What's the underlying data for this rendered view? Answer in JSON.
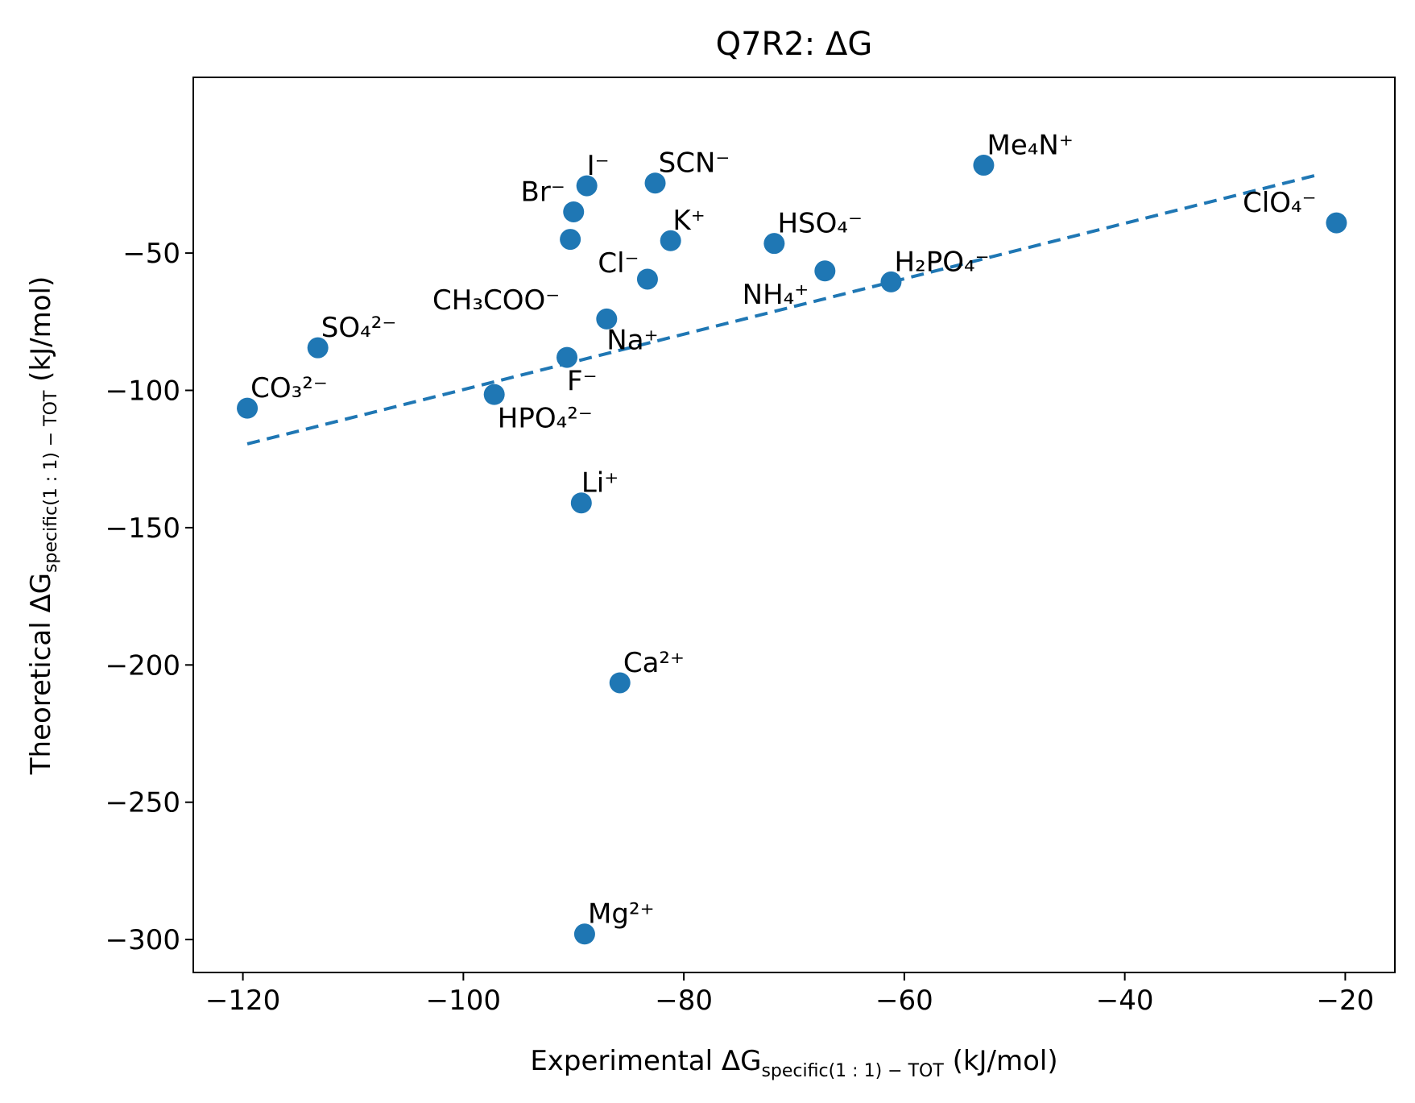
{
  "chart_data": {
    "type": "scatter",
    "title": "Q7R2: ΔG",
    "xlabel": {
      "prefix": "Experimental ΔG",
      "subscript": "specific(1 : 1) − TOT",
      "suffix": " (kJ/mol)"
    },
    "ylabel": {
      "prefix": "Theoretical ΔG",
      "subscript": "specific(1 : 1) − TOT",
      "suffix": " (kJ/mol)"
    },
    "xlim": [
      -124.5,
      -15.5
    ],
    "ylim": [
      -312,
      14
    ],
    "xticks": [
      -120,
      -100,
      -80,
      -60,
      -40,
      -20
    ],
    "xtick_labels": [
      "−120",
      "−100",
      "−80",
      "−60",
      "−40",
      "−20"
    ],
    "yticks": [
      -50,
      -100,
      -150,
      -200,
      -250,
      -300
    ],
    "ytick_labels": [
      "−50",
      "−100",
      "−150",
      "−200",
      "−250",
      "−300"
    ],
    "grid": false,
    "marker_color": "#1f77b4",
    "points": [
      {
        "label": "Me₄N⁺",
        "x": -52.8,
        "y": -18,
        "lx": 0.3,
        "ly": 4
      },
      {
        "label": "SCN⁻",
        "x": -82.6,
        "y": -24.5,
        "lx": 0.3,
        "ly": 4
      },
      {
        "label": "I⁻",
        "x": -88.8,
        "y": -25.5,
        "lx": 0.0,
        "ly": 4
      },
      {
        "label": "Br⁻",
        "x": -90.0,
        "y": -35,
        "lx": -4.8,
        "ly": 4
      },
      {
        "label": "ClO₄⁻",
        "x": -20.8,
        "y": -39,
        "lx": -8.5,
        "ly": 4
      },
      {
        "label": "K⁺",
        "x": -81.2,
        "y": -45.5,
        "lx": 0.2,
        "ly": 4
      },
      {
        "label": "HSO₄⁻",
        "x": -71.8,
        "y": -46.5,
        "lx": 0.3,
        "ly": 4
      },
      {
        "label": "Cl⁻",
        "x": -90.3,
        "y": -45,
        "lx": 2.5,
        "ly": -12
      },
      {
        "label": "NH₄⁺",
        "x": -67.2,
        "y": -56.5,
        "lx": -7.5,
        "ly": -12
      },
      {
        "label": "H₂PO₄⁻",
        "x": -61.2,
        "y": -60.5,
        "lx": 0.3,
        "ly": 4
      },
      {
        "label": "CH₃COO⁻",
        "x": -83.3,
        "y": -59.5,
        "lx": -19.5,
        "ly": -11
      },
      {
        "label": "Na⁺",
        "x": -87.0,
        "y": -74,
        "lx": 0.0,
        "ly": -11
      },
      {
        "label": "SO₄²⁻",
        "x": -113.2,
        "y": -84.5,
        "lx": 0.3,
        "ly": 4
      },
      {
        "label": "F⁻",
        "x": -90.6,
        "y": -88,
        "lx": 0.0,
        "ly": -12
      },
      {
        "label": "HPO₄²⁻",
        "x": -97.2,
        "y": -101.5,
        "lx": 0.3,
        "ly": -12
      },
      {
        "label": "CO₃²⁻",
        "x": -119.6,
        "y": -106.5,
        "lx": 0.3,
        "ly": 4
      },
      {
        "label": "Li⁺",
        "x": -89.3,
        "y": -141,
        "lx": 0.0,
        "ly": 4
      },
      {
        "label": "Ca²⁺",
        "x": -85.8,
        "y": -206.5,
        "lx": 0.3,
        "ly": 4
      },
      {
        "label": "Mg²⁺",
        "x": -89.0,
        "y": -298,
        "lx": 0.3,
        "ly": 4
      }
    ],
    "fit_line": {
      "x1": -119.6,
      "y1": -119.5,
      "x2": -22.5,
      "y2": -21.5,
      "style": "dashed",
      "color": "#1f77b4"
    }
  }
}
